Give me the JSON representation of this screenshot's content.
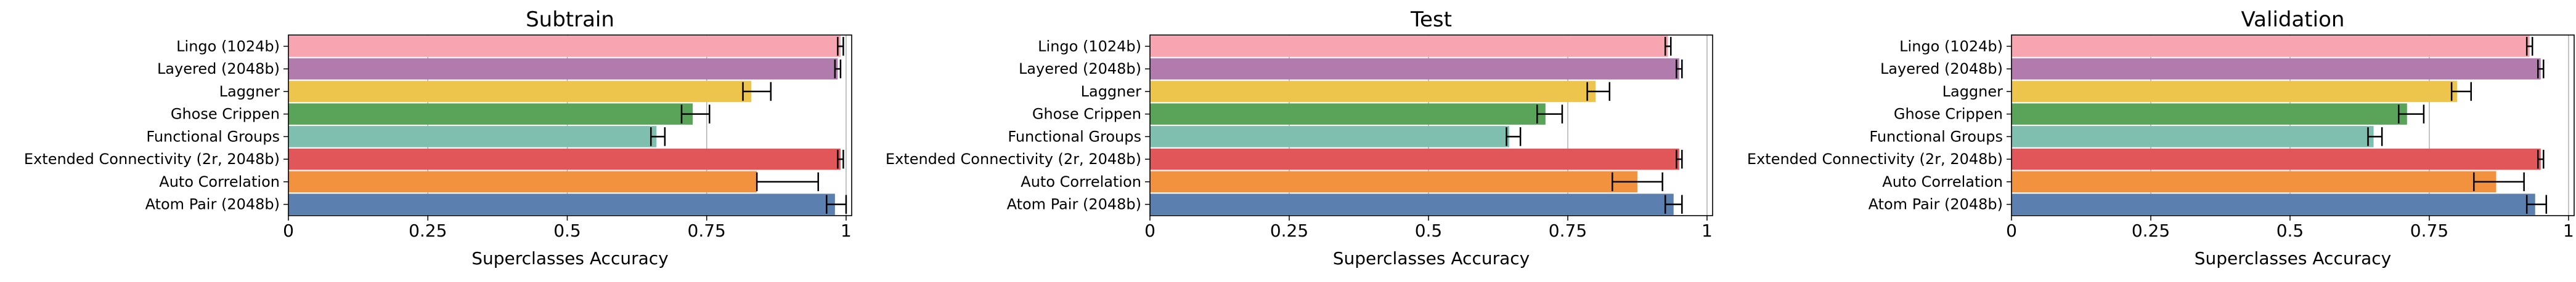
{
  "chart_data": [
    {
      "type": "bar",
      "orientation": "horizontal",
      "title": "Subtrain",
      "xlabel": "Superclasses Accuracy",
      "xlim": [
        0,
        1.01
      ],
      "xticks": [
        0,
        0.25,
        0.5,
        0.75,
        1
      ],
      "xtick_labels": [
        "0",
        "0.25",
        "0.5",
        "0.75",
        "1"
      ],
      "grid": "vertical",
      "categories": [
        "Lingo (1024b)",
        "Layered (2048b)",
        "Laggner",
        "Ghose Crippen",
        "Functional Groups",
        "Extended Connectivity (2r, 2048b)",
        "Auto Correlation",
        "Atom Pair (2048b)"
      ],
      "values": [
        0.99,
        0.985,
        0.83,
        0.725,
        0.66,
        0.99,
        0.84,
        0.98
      ],
      "errors": [
        {
          "low": 0.985,
          "high": 0.995
        },
        {
          "low": 0.98,
          "high": 0.99
        },
        {
          "low": 0.815,
          "high": 0.865
        },
        {
          "low": 0.705,
          "high": 0.755
        },
        {
          "low": 0.65,
          "high": 0.675
        },
        {
          "low": 0.985,
          "high": 0.995
        },
        {
          "low": 0.84,
          "high": 0.95
        },
        {
          "low": 0.965,
          "high": 1.0
        }
      ],
      "secondary_values": [
        null,
        null,
        null,
        null,
        null,
        null,
        0.895,
        null
      ],
      "colors": [
        "#f8a5b2",
        "#b27bae",
        "#edc44c",
        "#5aa45a",
        "#7fbfb0",
        "#e15759",
        "#f2923e",
        "#5b7fae"
      ]
    },
    {
      "type": "bar",
      "orientation": "horizontal",
      "title": "Test",
      "xlabel": "Superclasses Accuracy",
      "xlim": [
        0,
        1.01
      ],
      "xticks": [
        0,
        0.25,
        0.5,
        0.75,
        1
      ],
      "xtick_labels": [
        "0",
        "0.25",
        "0.5",
        "0.75",
        "1"
      ],
      "grid": "vertical",
      "categories": [
        "Lingo (1024b)",
        "Layered (2048b)",
        "Laggner",
        "Ghose Crippen",
        "Functional Groups",
        "Extended Connectivity (2r, 2048b)",
        "Auto Correlation",
        "Atom Pair (2048b)"
      ],
      "values": [
        0.93,
        0.95,
        0.8,
        0.71,
        0.645,
        0.95,
        0.875,
        0.94
      ],
      "errors": [
        {
          "low": 0.925,
          "high": 0.935
        },
        {
          "low": 0.945,
          "high": 0.955
        },
        {
          "low": 0.785,
          "high": 0.825
        },
        {
          "low": 0.695,
          "high": 0.74
        },
        {
          "low": 0.64,
          "high": 0.665
        },
        {
          "low": 0.945,
          "high": 0.955
        },
        {
          "low": 0.83,
          "high": 0.92
        },
        {
          "low": 0.925,
          "high": 0.955
        }
      ],
      "secondary_values": [
        null,
        null,
        null,
        null,
        null,
        null,
        null,
        null
      ],
      "colors": [
        "#f8a5b2",
        "#b27bae",
        "#edc44c",
        "#5aa45a",
        "#7fbfb0",
        "#e15759",
        "#f2923e",
        "#5b7fae"
      ]
    },
    {
      "type": "bar",
      "orientation": "horizontal",
      "title": "Validation",
      "xlabel": "Superclasses Accuracy",
      "xlim": [
        0,
        1.01
      ],
      "xticks": [
        0,
        0.25,
        0.5,
        0.75,
        1
      ],
      "xtick_labels": [
        "0",
        "0.25",
        "0.5",
        "0.75",
        "1"
      ],
      "grid": "vertical",
      "categories": [
        "Lingo (1024b)",
        "Layered (2048b)",
        "Laggner",
        "Ghose Crippen",
        "Functional Groups",
        "Extended Connectivity (2r, 2048b)",
        "Auto Correlation",
        "Atom Pair (2048b)"
      ],
      "values": [
        0.93,
        0.95,
        0.8,
        0.71,
        0.65,
        0.95,
        0.87,
        0.94
      ],
      "errors": [
        {
          "low": 0.925,
          "high": 0.935
        },
        {
          "low": 0.945,
          "high": 0.955
        },
        {
          "low": 0.79,
          "high": 0.825
        },
        {
          "low": 0.695,
          "high": 0.74
        },
        {
          "low": 0.64,
          "high": 0.665
        },
        {
          "low": 0.945,
          "high": 0.955
        },
        {
          "low": 0.83,
          "high": 0.92
        },
        {
          "low": 0.925,
          "high": 0.96
        }
      ],
      "secondary_values": [
        null,
        null,
        null,
        null,
        null,
        null,
        null,
        null
      ],
      "colors": [
        "#f8a5b2",
        "#b27bae",
        "#edc44c",
        "#5aa45a",
        "#7fbfb0",
        "#e15759",
        "#f2923e",
        "#5b7fae"
      ]
    }
  ]
}
